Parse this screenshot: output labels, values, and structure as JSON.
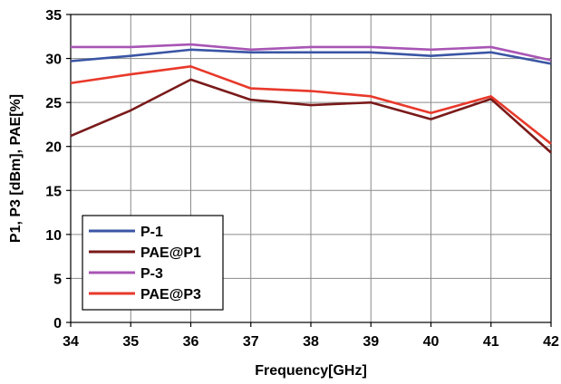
{
  "chart_data": {
    "type": "line",
    "title": "",
    "xlabel": "Frequency[GHz]",
    "ylabel": "P1, P3 [dBm], PAE[%]",
    "x": [
      34,
      35,
      36,
      37,
      38,
      39,
      40,
      41,
      42
    ],
    "xlim": [
      34,
      42
    ],
    "ylim": [
      0,
      35
    ],
    "xticks": [
      "34",
      "35",
      "36",
      "37",
      "38",
      "39",
      "40",
      "41",
      "42"
    ],
    "yticks": [
      "0",
      "5",
      "10",
      "15",
      "20",
      "25",
      "30",
      "35"
    ],
    "grid": true,
    "legend_position": "bottom-left",
    "series": [
      {
        "name": "P-1",
        "color": "#3a55a4",
        "values": [
          29.7,
          30.3,
          31.0,
          30.7,
          30.7,
          30.7,
          30.3,
          30.7,
          29.4
        ]
      },
      {
        "name": "PAE@P1",
        "color": "#7a1a1a",
        "values": [
          21.2,
          24.1,
          27.6,
          25.3,
          24.7,
          25.0,
          23.1,
          25.4,
          19.3
        ]
      },
      {
        "name": "P-3",
        "color": "#a855b5",
        "values": [
          31.3,
          31.3,
          31.6,
          31.0,
          31.3,
          31.3,
          31.0,
          31.3,
          29.8
        ]
      },
      {
        "name": "PAE@P3",
        "color": "#e8392b",
        "values": [
          27.2,
          28.2,
          29.1,
          26.6,
          26.3,
          25.7,
          23.8,
          25.7,
          20.3
        ]
      }
    ]
  }
}
